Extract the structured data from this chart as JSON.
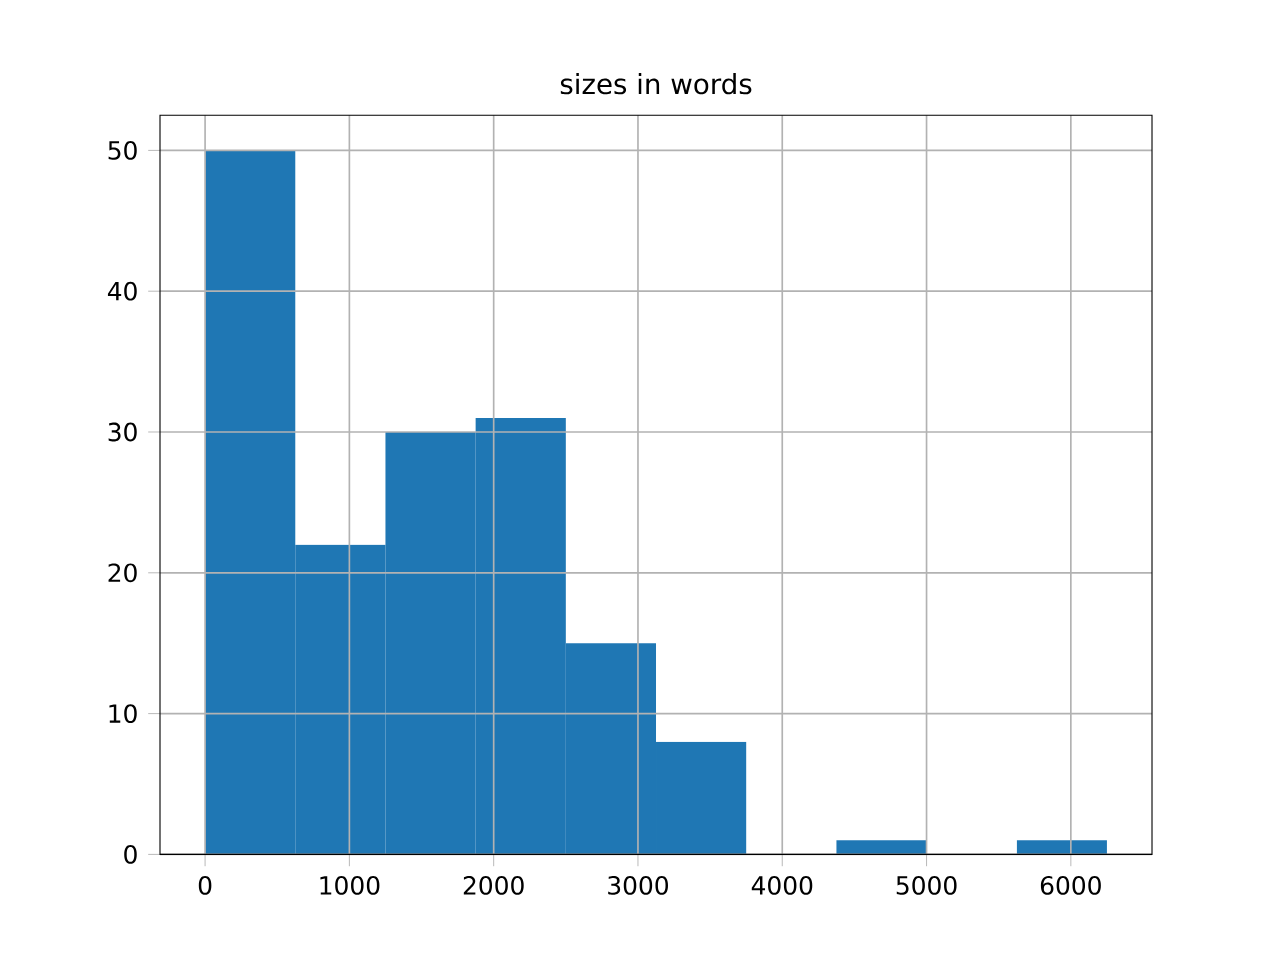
{
  "chart_data": {
    "type": "histogram",
    "title": "sizes in words",
    "bins": [
      0,
      625,
      1250,
      1875,
      2500,
      3125,
      3750,
      4375,
      5000,
      5625,
      6250
    ],
    "values": [
      50,
      22,
      30,
      31,
      15,
      8,
      0,
      1,
      0,
      1
    ],
    "color": "#1f77b4",
    "xlim": [
      -312.5,
      6562.5
    ],
    "ylim": [
      0,
      52.5
    ],
    "xticks": [
      0,
      1000,
      2000,
      3000,
      4000,
      5000,
      6000
    ],
    "yticks": [
      0,
      10,
      20,
      30,
      40,
      50
    ],
    "grid": true
  }
}
